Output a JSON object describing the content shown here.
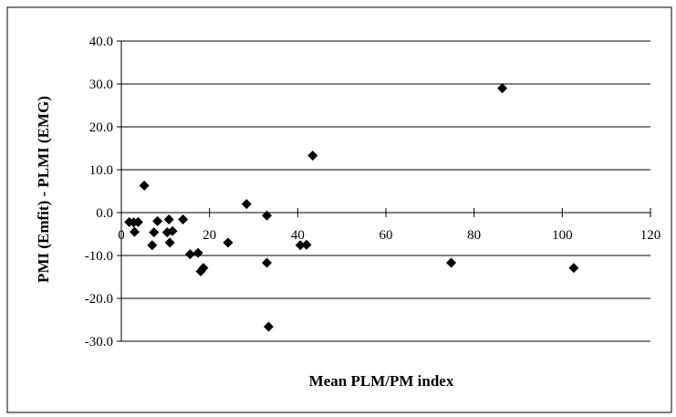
{
  "chart_data": {
    "type": "scatter",
    "title": "",
    "xlabel": "Mean PLM/PM index",
    "ylabel": "PMI (Emfit) - PLMI (EMG)",
    "xlim": [
      0,
      120
    ],
    "ylim": [
      -30,
      40
    ],
    "x_ticks": [
      "0",
      "20",
      "40",
      "60",
      "80",
      "100",
      "120"
    ],
    "y_ticks": [
      "40.0",
      "30.0",
      "20.0",
      "10.0",
      "0.0",
      "-10.0",
      "-20.0",
      "-30.0"
    ],
    "grid": "horizontal",
    "legend": "none",
    "marker": "diamond",
    "marker_color": "#000000",
    "series": [
      {
        "points": [
          [
            1.8,
            -2.2
          ],
          [
            2.8,
            -2.3
          ],
          [
            3.0,
            -4.5
          ],
          [
            3.8,
            -2.2
          ],
          [
            5.2,
            6.3
          ],
          [
            7.0,
            -7.6
          ],
          [
            7.4,
            -4.6
          ],
          [
            8.2,
            -2.0
          ],
          [
            10.4,
            -4.6
          ],
          [
            10.8,
            -1.6
          ],
          [
            11.0,
            -7.0
          ],
          [
            11.6,
            -4.3
          ],
          [
            14.0,
            -1.6
          ],
          [
            15.6,
            -9.7
          ],
          [
            17.4,
            -9.4
          ],
          [
            18.0,
            -13.7
          ],
          [
            18.6,
            -12.9
          ],
          [
            24.2,
            -7.0
          ],
          [
            28.4,
            2.0
          ],
          [
            33.0,
            -0.7
          ],
          [
            33.0,
            -11.7
          ],
          [
            33.4,
            -26.6
          ],
          [
            40.6,
            -7.6
          ],
          [
            42.0,
            -7.5
          ],
          [
            43.4,
            13.3
          ],
          [
            74.8,
            -11.7
          ],
          [
            86.4,
            29.0
          ],
          [
            102.6,
            -12.9
          ]
        ]
      }
    ]
  }
}
